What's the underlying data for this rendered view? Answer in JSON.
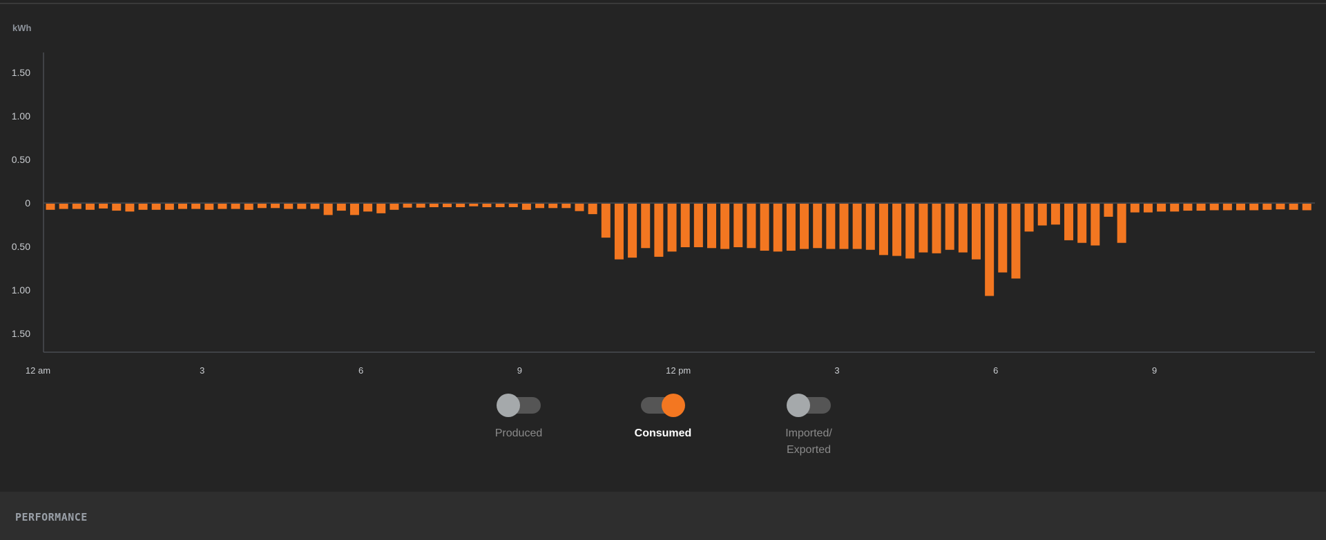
{
  "chart_data": {
    "type": "bar",
    "title": "",
    "ylabel": "kWh",
    "xlabel": "",
    "ylim": [
      -1.7,
      1.7
    ],
    "ytick_values": [
      1.5,
      1.0,
      0.5,
      0,
      -0.5,
      -1.0,
      -1.5
    ],
    "ytick_labels": [
      "1.50",
      "1.00",
      "0.50",
      "0",
      "0.50",
      "1.00",
      "1.50"
    ],
    "xtick_positions": [
      0,
      12,
      24,
      36,
      48,
      60,
      72,
      84
    ],
    "xtick_labels": [
      "12 am",
      "3",
      "6",
      "9",
      "12 pm",
      "3",
      "6",
      "9"
    ],
    "interval": "15 min",
    "series": [
      {
        "name": "Consumed",
        "color": "#f37721",
        "values": [
          -0.07,
          -0.06,
          -0.06,
          -0.07,
          -0.055,
          -0.08,
          -0.09,
          -0.07,
          -0.07,
          -0.07,
          -0.06,
          -0.06,
          -0.07,
          -0.06,
          -0.06,
          -0.07,
          -0.05,
          -0.05,
          -0.06,
          -0.06,
          -0.06,
          -0.13,
          -0.08,
          -0.13,
          -0.09,
          -0.11,
          -0.07,
          -0.045,
          -0.045,
          -0.04,
          -0.04,
          -0.04,
          -0.03,
          -0.04,
          -0.04,
          -0.04,
          -0.07,
          -0.05,
          -0.05,
          -0.05,
          -0.085,
          -0.12,
          -0.39,
          -0.64,
          -0.62,
          -0.51,
          -0.61,
          -0.55,
          -0.5,
          -0.5,
          -0.51,
          -0.52,
          -0.5,
          -0.51,
          -0.54,
          -0.55,
          -0.54,
          -0.52,
          -0.51,
          -0.52,
          -0.52,
          -0.52,
          -0.53,
          -0.59,
          -0.6,
          -0.63,
          -0.56,
          -0.57,
          -0.53,
          -0.56,
          -0.64,
          -1.06,
          -0.79,
          -0.86,
          -0.32,
          -0.25,
          -0.24,
          -0.42,
          -0.45,
          -0.48,
          -0.15,
          -0.45,
          -0.1,
          -0.1,
          -0.09,
          -0.09,
          -0.08,
          -0.08,
          -0.075,
          -0.075,
          -0.075,
          -0.075,
          -0.07,
          -0.065,
          -0.07,
          -0.075
        ]
      }
    ]
  },
  "legend": {
    "produced": {
      "label": "Produced",
      "on": false
    },
    "consumed": {
      "label": "Consumed",
      "on": true
    },
    "imported": {
      "label_line1": "Imported/",
      "label_line2": "Exported",
      "on": false
    }
  },
  "section": {
    "title": "PERFORMANCE"
  }
}
